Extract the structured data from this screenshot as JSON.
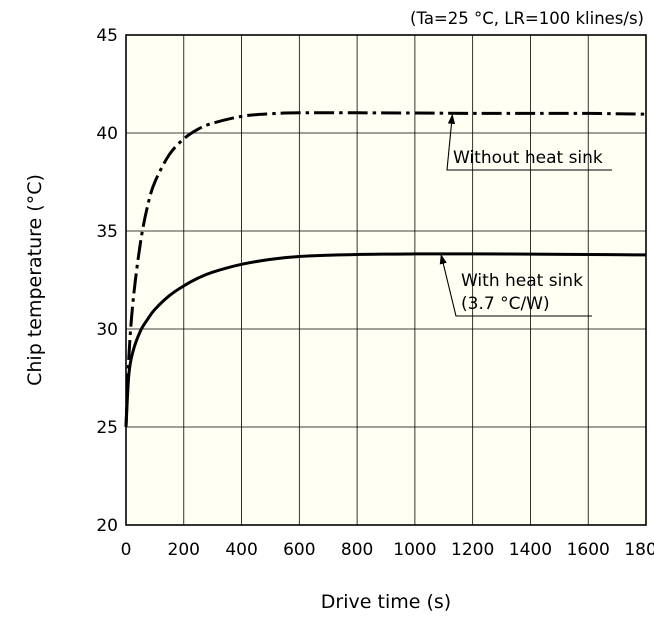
{
  "chart_data": {
    "type": "line",
    "condition_note": "(Ta=25 °C, LR=100 klines/s)",
    "xlabel": "Drive time (s)",
    "ylabel": "Chip temperature (°C)",
    "xlim": [
      0,
      1800
    ],
    "ylim": [
      20,
      45
    ],
    "x_ticks": [
      0,
      200,
      400,
      600,
      800,
      1000,
      1200,
      1400,
      1600,
      1800
    ],
    "y_ticks": [
      20,
      25,
      30,
      35,
      40,
      45
    ],
    "grid": true,
    "series": [
      {
        "label_lines": [
          "Without heat sink"
        ],
        "line_style": "dash-dot",
        "color": "#000000",
        "x": [
          0,
          10,
          25,
          50,
          75,
          100,
          150,
          200,
          250,
          300,
          400,
          500,
          600,
          800,
          1000,
          1200,
          1400,
          1600,
          1800
        ],
        "y": [
          25.0,
          28.6,
          31.5,
          34.4,
          36.3,
          37.5,
          38.9,
          39.7,
          40.2,
          40.5,
          40.85,
          40.98,
          41.03,
          41.03,
          41.02,
          41.0,
          41.0,
          41.0,
          40.96
        ]
      },
      {
        "label_lines": [
          "With heat sink",
          "(3.7 °C/W)"
        ],
        "line_style": "solid",
        "color": "#000000",
        "x": [
          0,
          10,
          25,
          50,
          75,
          100,
          150,
          200,
          250,
          300,
          400,
          500,
          600,
          800,
          1000,
          1200,
          1400,
          1600,
          1800
        ],
        "y": [
          25.0,
          27.7,
          28.9,
          29.9,
          30.5,
          31.0,
          31.7,
          32.2,
          32.6,
          32.9,
          33.3,
          33.55,
          33.7,
          33.8,
          33.83,
          33.83,
          33.82,
          33.8,
          33.78
        ]
      }
    ]
  }
}
